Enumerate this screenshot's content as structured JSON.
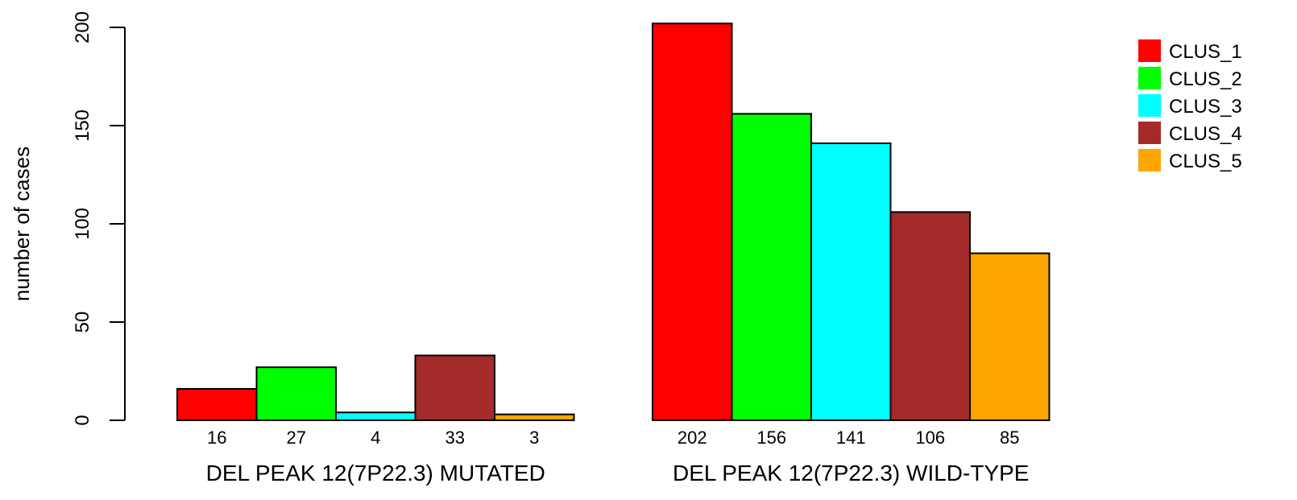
{
  "chart_data": {
    "type": "bar",
    "ylabel": "number of cases",
    "ylim": [
      0,
      200
    ],
    "yticks": [
      0,
      50,
      100,
      150,
      200
    ],
    "groups": [
      {
        "label": "DEL PEAK 12(7P22.3) MUTATED",
        "values": [
          16,
          27,
          4,
          33,
          3
        ],
        "value_labels": [
          "16",
          "27",
          "4",
          "33",
          "3"
        ]
      },
      {
        "label": "DEL PEAK 12(7P22.3) WILD-TYPE",
        "values": [
          202,
          156,
          141,
          106,
          85
        ],
        "value_labels": [
          "202",
          "156",
          "141",
          "106",
          "85"
        ]
      }
    ],
    "series": [
      {
        "name": "CLUS_1",
        "color": "#FF0000"
      },
      {
        "name": "CLUS_2",
        "color": "#00FF00"
      },
      {
        "name": "CLUS_3",
        "color": "#00FFFF"
      },
      {
        "name": "CLUS_4",
        "color": "#A52A2A"
      },
      {
        "name": "CLUS_5",
        "color": "#FFA500"
      }
    ],
    "legend_position": "top-right",
    "grid": false
  }
}
